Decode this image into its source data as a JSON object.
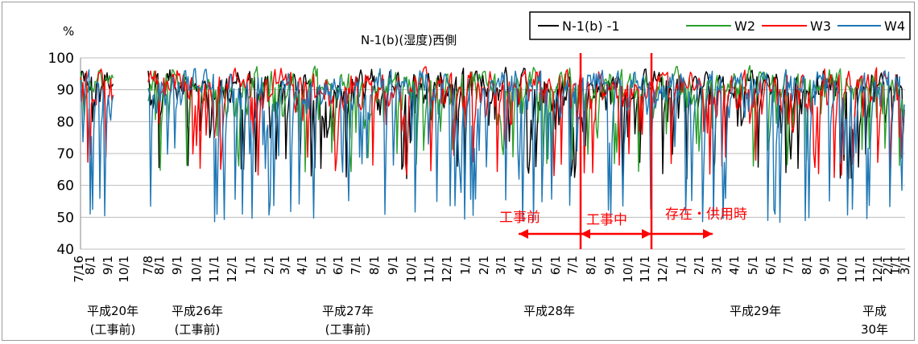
{
  "chart_data": {
    "type": "line",
    "title": "N-1(b)(湿度)西側",
    "ylabel": "%",
    "xlabel": "",
    "ylim": [
      40,
      100
    ],
    "y_ticks": [
      "100",
      "90",
      "80",
      "70",
      "60",
      "50",
      "40"
    ],
    "grid": true,
    "legend_position": "top-right",
    "x_tick_labels": [
      "7/16",
      "8/1",
      "9/1",
      "10/1",
      "7/8",
      "8/1",
      "9/1",
      "10/1",
      "11/1",
      "12/1",
      "1/1",
      "2/1",
      "3/1",
      "4/1",
      "5/1",
      "6/1",
      "7/1",
      "8/1",
      "9/1",
      "10/1",
      "11/1",
      "12/1",
      "1/1",
      "2/1",
      "3/1",
      "4/1",
      "5/1",
      "6/1",
      "7/1",
      "8/1",
      "9/1",
      "10/1",
      "11/1",
      "12/1",
      "1/1",
      "2/1",
      "3/1",
      "4/1",
      "5/1",
      "6/1",
      "7/1",
      "8/1",
      "9/1",
      "10/1",
      "11/1",
      "12/1",
      "1/1",
      "2/1",
      "3/1"
    ],
    "year_groups": [
      {
        "line1": "平成20年",
        "line2": "(工事前)"
      },
      {
        "line1": "平成26年",
        "line2": "(工事前)"
      },
      {
        "line1": "平成27年",
        "line2": "(工事前)"
      },
      {
        "line1": "平成28年",
        "line2": ""
      },
      {
        "line1": "平成29年",
        "line2": ""
      },
      {
        "line1": "平成",
        "line2": "30年"
      }
    ],
    "series": [
      {
        "name": "N-1(b) -1",
        "color": "#000000",
        "summary": {
          "min": 58,
          "max": 99
        }
      },
      {
        "name": "W2",
        "color": "#2ca02c",
        "summary": {
          "min": 60,
          "max": 99
        }
      },
      {
        "name": "W3",
        "color": "#ff0000",
        "summary": {
          "min": 58,
          "max": 99
        }
      },
      {
        "name": "W4",
        "color": "#1f77b4",
        "summary": {
          "min": 48,
          "max": 99
        }
      }
    ],
    "annotations": [
      {
        "text": "工事前",
        "color": "#ff0000"
      },
      {
        "text": "工事中",
        "color": "#ff0000"
      },
      {
        "text": "存在・供用時",
        "color": "#ff0000"
      }
    ]
  }
}
